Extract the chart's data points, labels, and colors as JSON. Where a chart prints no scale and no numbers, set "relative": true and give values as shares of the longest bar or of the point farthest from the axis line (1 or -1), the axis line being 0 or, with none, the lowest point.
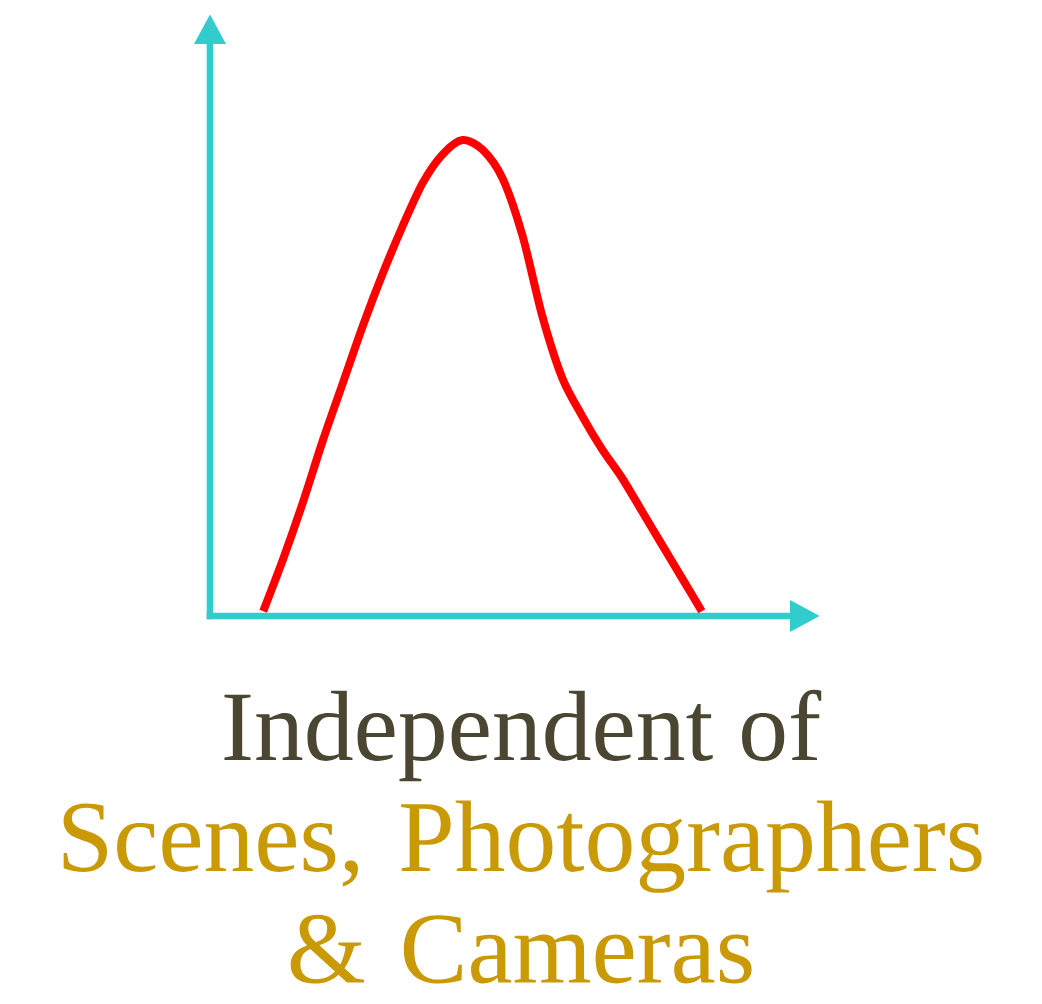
{
  "chart_data": {
    "type": "line",
    "title": "Independent of",
    "subtitle": "Scenes, Photographers & Cameras",
    "relative": true,
    "categories": [
      null,
      null,
      null,
      null,
      null,
      null,
      null,
      null,
      null,
      null,
      null,
      null,
      null,
      null,
      null,
      null,
      null,
      null,
      null,
      null,
      null,
      null,
      null
    ],
    "values": [
      0.01,
      0.12,
      0.24,
      0.37,
      0.49,
      0.61,
      0.72,
      0.82,
      0.91,
      0.97,
      1,
      0.98,
      0.92,
      0.8,
      0.63,
      0.5,
      0.42,
      0.35,
      0.29,
      0.22,
      0.15,
      0.08,
      0.01
    ],
    "color": "#ff0000"
  }
}
